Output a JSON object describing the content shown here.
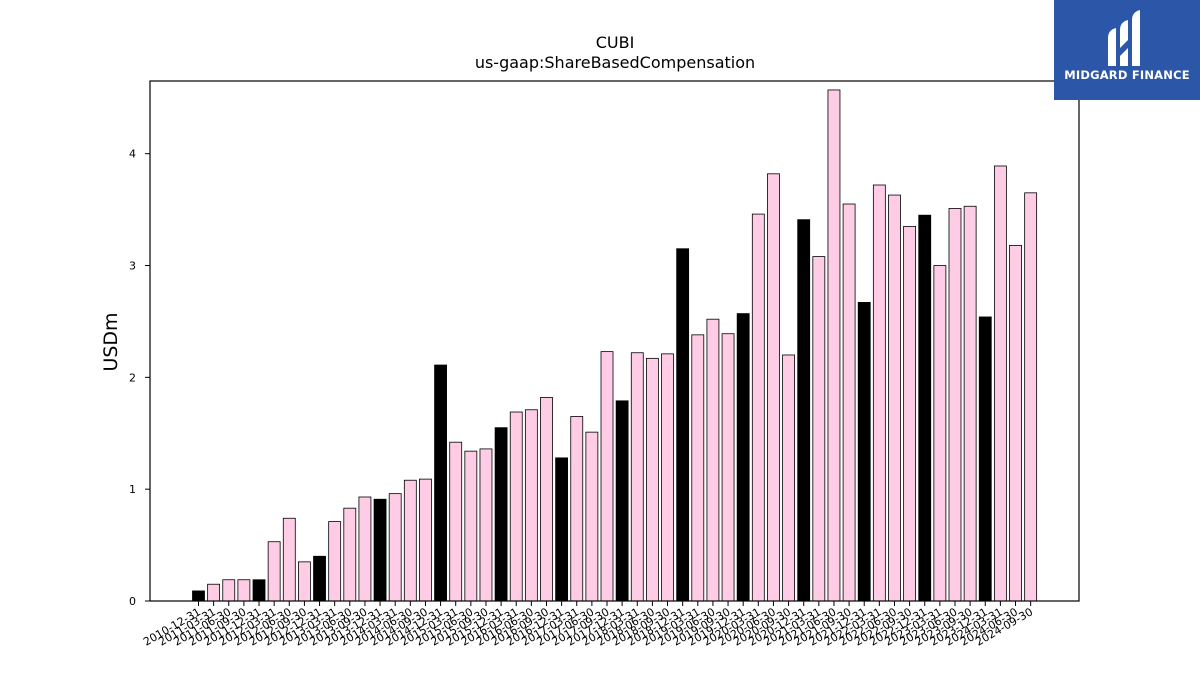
{
  "chart_data": {
    "type": "bar",
    "title": "CUBI",
    "subtitle": "us-gaap:ShareBasedCompensation",
    "xlabel": "",
    "ylabel": "USDm",
    "ylim": [
      0,
      4.65
    ],
    "yticks": [
      0,
      1,
      2,
      3,
      4
    ],
    "grid": false,
    "colors": {
      "quarter": "#ffcce6",
      "annual": "#000000",
      "edge": "#000000"
    },
    "categories": [
      "2010-12-31",
      "2011-03-31",
      "2011-06-30",
      "2011-09-30",
      "2011-12-31",
      "2012-03-31",
      "2012-06-30",
      "2012-09-30",
      "2012-12-31",
      "2013-03-31",
      "2013-06-30",
      "2013-09-30",
      "2013-12-31",
      "2014-03-31",
      "2014-06-30",
      "2014-09-30",
      "2014-12-31",
      "2015-03-31",
      "2015-06-30",
      "2015-09-30",
      "2015-12-31",
      "2016-03-31",
      "2016-06-30",
      "2016-09-30",
      "2016-12-31",
      "2017-03-31",
      "2017-06-30",
      "2017-09-30",
      "2017-12-31",
      "2018-03-31",
      "2018-06-30",
      "2018-09-30",
      "2018-12-31",
      "2019-03-31",
      "2019-06-30",
      "2019-09-30",
      "2019-12-31",
      "2020-03-31",
      "2020-06-30",
      "2020-09-30",
      "2020-12-31",
      "2021-03-31",
      "2021-06-30",
      "2021-09-30",
      "2021-12-31",
      "2022-03-31",
      "2022-06-30",
      "2022-09-30",
      "2022-12-31",
      "2023-03-31",
      "2023-06-30",
      "2023-09-30",
      "2023-12-31",
      "2024-03-31",
      "2024-06-30",
      "2024-09-30"
    ],
    "values": [
      0.09,
      0.15,
      0.19,
      0.19,
      0.19,
      0.53,
      0.74,
      0.35,
      0.4,
      0.71,
      0.83,
      0.93,
      0.91,
      0.96,
      1.08,
      1.09,
      2.11,
      1.42,
      1.34,
      1.36,
      1.55,
      1.69,
      1.71,
      1.82,
      1.28,
      1.65,
      1.51,
      2.23,
      1.79,
      2.22,
      2.17,
      2.21,
      3.15,
      2.38,
      2.52,
      2.39,
      2.57,
      3.46,
      3.82,
      2.2,
      3.41,
      3.08,
      4.57,
      3.55,
      2.67,
      3.72,
      3.63,
      3.35,
      3.45,
      3.0,
      3.51,
      3.53,
      2.54,
      3.89,
      3.18,
      3.65
    ],
    "annual": [
      true,
      false,
      false,
      false,
      true,
      false,
      false,
      false,
      true,
      false,
      false,
      false,
      true,
      false,
      false,
      false,
      true,
      false,
      false,
      false,
      true,
      false,
      false,
      false,
      true,
      false,
      false,
      false,
      true,
      false,
      false,
      false,
      true,
      false,
      false,
      false,
      true,
      false,
      false,
      false,
      true,
      false,
      false,
      false,
      true,
      false,
      false,
      false,
      true,
      false,
      false,
      false,
      true,
      false,
      false,
      false
    ]
  },
  "logo": {
    "text": "MIDGARD FINANCE",
    "icon": "midgard-logo-icon"
  }
}
